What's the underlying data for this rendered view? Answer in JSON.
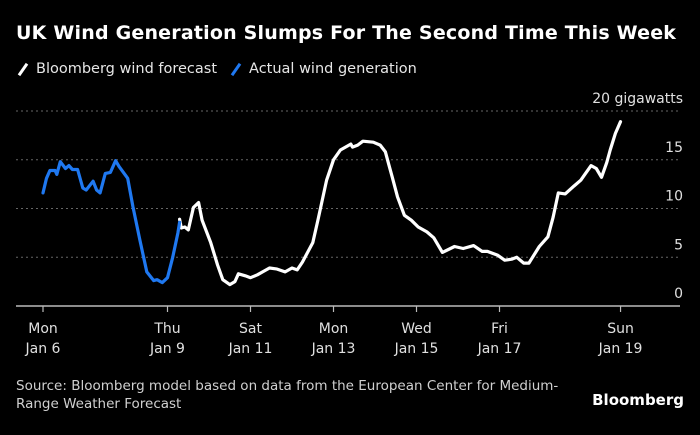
{
  "chart_data": {
    "type": "line",
    "title": "UK Wind Generation Slumps For The Second Time This Week",
    "ylabel": "",
    "yunit_label": "20 gigawatts",
    "ylim": [
      0,
      20
    ],
    "yticks": [
      0,
      5,
      10,
      15,
      20
    ],
    "ytick_labels": [
      "0",
      "5",
      "10",
      "15",
      "20 gigawatts"
    ],
    "grid": true,
    "xticks": [
      {
        "x": "01-06T00:00",
        "line1": "Mon",
        "line2": "Jan 6"
      },
      {
        "x": "01-09T00:00",
        "line1": "Thu",
        "line2": "Jan 9"
      },
      {
        "x": "01-11T00:00",
        "line1": "Sat",
        "line2": "Jan 11"
      },
      {
        "x": "01-13T00:00",
        "line1": "Mon",
        "line2": "Jan 13"
      },
      {
        "x": "01-15T00:00",
        "line1": "Wed",
        "line2": "Jan 15"
      },
      {
        "x": "01-17T00:00",
        "line1": "Fri",
        "line2": "Jan 17"
      },
      {
        "x": "01-19T22:00",
        "line1": "Sun",
        "line2": "Jan 19"
      }
    ],
    "legend_placement": "top-left",
    "series": [
      {
        "name": "Bloomberg wind forecast",
        "color": "#ffffff",
        "points": [
          [
            "01-09T07:00",
            8.9
          ],
          [
            "01-09T08:00",
            8.0
          ],
          [
            "01-09T10:00",
            8.1
          ],
          [
            "01-09T12:00",
            7.8
          ],
          [
            "01-09T15:00",
            10.1
          ],
          [
            "01-09T18:00",
            10.6
          ],
          [
            "01-09T20:00",
            8.8
          ],
          [
            "01-10T01:00",
            6.5
          ],
          [
            "01-10T05:00",
            4.2
          ],
          [
            "01-10T08:00",
            2.7
          ],
          [
            "01-10T12:00",
            2.2
          ],
          [
            "01-10T15:00",
            2.5
          ],
          [
            "01-10T17:00",
            3.3
          ],
          [
            "01-10T21:00",
            3.1
          ],
          [
            "01-11T00:00",
            2.9
          ],
          [
            "01-11T04:00",
            3.2
          ],
          [
            "01-11T07:00",
            3.5
          ],
          [
            "01-11T11:00",
            3.9
          ],
          [
            "01-11T15:00",
            3.8
          ],
          [
            "01-11T20:00",
            3.5
          ],
          [
            "01-12T00:00",
            3.9
          ],
          [
            "01-12T03:00",
            3.7
          ],
          [
            "01-12T06:00",
            4.5
          ],
          [
            "01-12T12:00",
            6.5
          ],
          [
            "01-12T15:00",
            8.8
          ],
          [
            "01-12T20:00",
            12.9
          ],
          [
            "01-13T00:00",
            15.0
          ],
          [
            "01-13T04:00",
            16.0
          ],
          [
            "01-13T10:00",
            16.6
          ],
          [
            "01-13T11:00",
            16.3
          ],
          [
            "01-13T14:00",
            16.5
          ],
          [
            "01-13T17:00",
            16.9
          ],
          [
            "01-13T23:00",
            16.8
          ],
          [
            "01-14T03:00",
            16.5
          ],
          [
            "01-14T06:00",
            15.8
          ],
          [
            "01-14T08:00",
            14.5
          ],
          [
            "01-14T10:00",
            13.2
          ],
          [
            "01-14T13:00",
            11.2
          ],
          [
            "01-14T17:00",
            9.3
          ],
          [
            "01-14T21:00",
            8.8
          ],
          [
            "01-15T01:00",
            8.1
          ],
          [
            "01-15T06:00",
            7.6
          ],
          [
            "01-15T10:00",
            7.0
          ],
          [
            "01-15T15:00",
            5.5
          ],
          [
            "01-15T22:00",
            6.1
          ],
          [
            "01-16T03:00",
            5.9
          ],
          [
            "01-16T09:00",
            6.2
          ],
          [
            "01-16T14:00",
            5.6
          ],
          [
            "01-16T17:00",
            5.6
          ],
          [
            "01-16T23:00",
            5.2
          ],
          [
            "01-17T03:00",
            4.7
          ],
          [
            "01-17T07:00",
            4.8
          ],
          [
            "01-17T10:00",
            5.0
          ],
          [
            "01-17T14:00",
            4.4
          ],
          [
            "01-17T17:00",
            4.4
          ],
          [
            "01-17T23:00",
            6.1
          ],
          [
            "01-18T04:00",
            7.1
          ],
          [
            "01-18T07:00",
            9.1
          ],
          [
            "01-18T10:00",
            11.6
          ],
          [
            "01-18T14:00",
            11.5
          ],
          [
            "01-18T19:00",
            12.3
          ],
          [
            "01-18T23:00",
            12.9
          ],
          [
            "01-19T01:00",
            13.4
          ],
          [
            "01-19T05:00",
            14.4
          ],
          [
            "01-19T08:00",
            14.1
          ],
          [
            "01-19T11:00",
            13.2
          ],
          [
            "01-19T14:00",
            14.7
          ],
          [
            "01-19T16:00",
            16.0
          ],
          [
            "01-19T19:00",
            17.7
          ],
          [
            "01-19T22:00",
            18.9
          ]
        ]
      },
      {
        "name": "Actual wind generation",
        "color": "#1f78f0",
        "points": [
          [
            "01-06T00:00",
            11.6
          ],
          [
            "01-06T02:00",
            13.1
          ],
          [
            "01-06T04:00",
            13.9
          ],
          [
            "01-06T07:00",
            13.9
          ],
          [
            "01-06T08:00",
            13.5
          ],
          [
            "01-06T10:00",
            14.8
          ],
          [
            "01-06T13:00",
            14.1
          ],
          [
            "01-06T15:00",
            14.4
          ],
          [
            "01-06T17:00",
            14.0
          ],
          [
            "01-06T20:00",
            14.0
          ],
          [
            "01-06T23:00",
            12.1
          ],
          [
            "01-07T01:00",
            11.9
          ],
          [
            "01-07T05:00",
            12.8
          ],
          [
            "01-07T07:00",
            11.9
          ],
          [
            "01-07T09:00",
            11.6
          ],
          [
            "01-07T12:00",
            13.6
          ],
          [
            "01-07T15:00",
            13.7
          ],
          [
            "01-07T18:00",
            14.9
          ],
          [
            "01-07T20:00",
            14.3
          ],
          [
            "01-08T01:00",
            13.1
          ],
          [
            "01-08T04:00",
            10.2
          ],
          [
            "01-08T08:00",
            6.8
          ],
          [
            "01-08T12:00",
            3.5
          ],
          [
            "01-08T16:00",
            2.6
          ],
          [
            "01-08T18:00",
            2.7
          ],
          [
            "01-08T21:00",
            2.4
          ],
          [
            "01-09T00:00",
            2.9
          ],
          [
            "01-09T03:00",
            5.0
          ],
          [
            "01-09T06:00",
            7.5
          ],
          [
            "01-09T07:00",
            8.6
          ]
        ]
      }
    ]
  },
  "footer": {
    "source": "Source: Bloomberg model based on data from the European Center for Medium-Range Weather Forecast",
    "logo": "Bloomberg"
  }
}
